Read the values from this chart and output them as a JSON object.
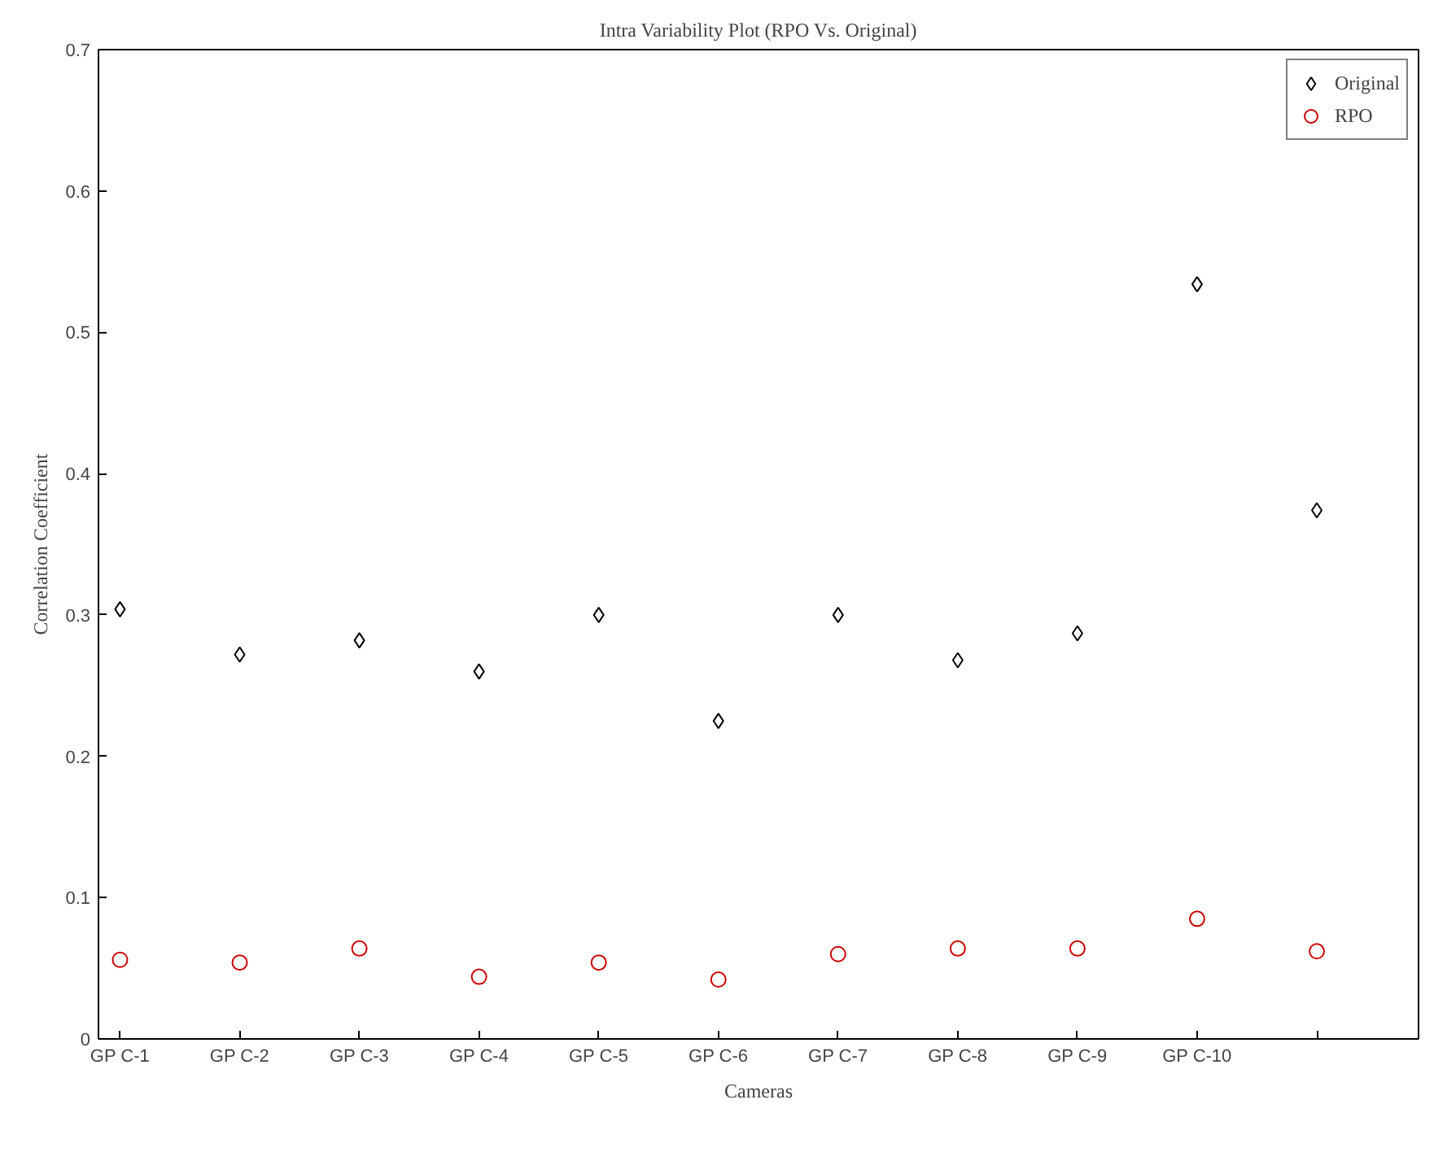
{
  "chart_data": {
    "type": "scatter",
    "title": "Intra Variability Plot (RPO Vs. Original)",
    "xlabel": "Cameras",
    "ylabel": "Correlation Coefficient",
    "categories": [
      "GP C-1",
      "GP C-2",
      "GP C-3",
      "GP C-4",
      "GP C-5",
      "GP C-6",
      "GP C-7",
      "GP C-8",
      "GP C-9",
      "GP C-10",
      null
    ],
    "series": [
      {
        "name": "Original",
        "color": "#000000",
        "marker": "diamond",
        "values": [
          0.304,
          0.272,
          0.282,
          0.26,
          0.3,
          0.225,
          0.3,
          0.268,
          0.287,
          0.534,
          0.374
        ]
      },
      {
        "name": "RPO",
        "color": "#cc0000",
        "marker": "circle",
        "values": [
          0.056,
          0.054,
          0.064,
          0.044,
          0.054,
          0.042,
          0.06,
          0.064,
          0.064,
          0.085,
          0.062
        ]
      }
    ],
    "ylim": [
      0,
      0.7
    ],
    "yticks": [
      0,
      0.1,
      0.2,
      0.3,
      0.4,
      0.5,
      0.6,
      0.7
    ],
    "grid": false,
    "legend": "top right"
  }
}
